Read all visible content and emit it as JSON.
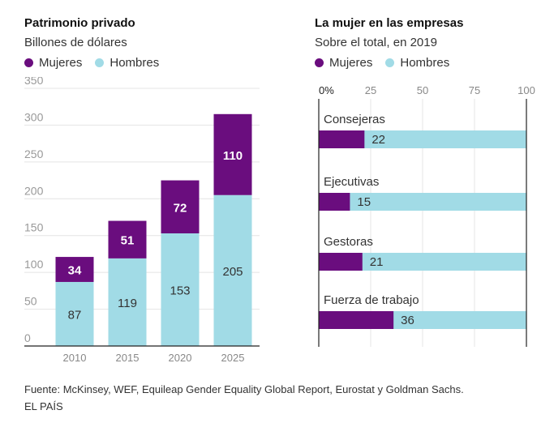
{
  "colors": {
    "mujeres": "#6a0d7e",
    "hombres": "#a1dbe6",
    "grid": "#e4e4e4",
    "axis": "#222222"
  },
  "left": {
    "title": "Patrimonio privado",
    "subtitle": "Billones de dólares",
    "legend": [
      "Mujeres",
      "Hombres"
    ]
  },
  "right": {
    "title": "La mujer en las empresas",
    "subtitle": "Sobre el total, en 2019",
    "legend": [
      "Mujeres",
      "Hombres"
    ]
  },
  "footer": {
    "source": "Fuente: McKinsey, WEF, Equileap Gender Equality Global Report, Eurostat y Goldman Sachs.",
    "brand": "EL PAÍS"
  },
  "chart_data": [
    {
      "type": "bar",
      "stacked": true,
      "title": "Patrimonio privado",
      "subtitle": "Billones de dólares",
      "categories": [
        "2010",
        "2015",
        "2020",
        "2025"
      ],
      "series": [
        {
          "name": "Hombres",
          "values": [
            87,
            119,
            153,
            205
          ],
          "color": "#a1dbe6"
        },
        {
          "name": "Mujeres",
          "values": [
            34,
            51,
            72,
            110
          ],
          "color": "#6a0d7e"
        }
      ],
      "ylim": [
        0,
        350
      ],
      "yticks": [
        0,
        50,
        100,
        150,
        200,
        250,
        300,
        350
      ],
      "grid": true,
      "legend": "top-left"
    },
    {
      "type": "bar",
      "orientation": "horizontal",
      "title": "La mujer en las empresas",
      "subtitle": "Sobre el total, en 2019",
      "categories": [
        "Consejeras",
        "Ejecutivas",
        "Gestoras",
        "Fuerza de trabajo"
      ],
      "series": [
        {
          "name": "Mujeres",
          "values": [
            22,
            15,
            21,
            36
          ],
          "color": "#6a0d7e"
        },
        {
          "name": "Hombres",
          "values": [
            78,
            85,
            79,
            64
          ],
          "color": "#a1dbe6"
        }
      ],
      "xlim": [
        0,
        100
      ],
      "xticks": [
        "0%",
        "25",
        "50",
        "75",
        "100"
      ],
      "legend": "top-left"
    }
  ]
}
